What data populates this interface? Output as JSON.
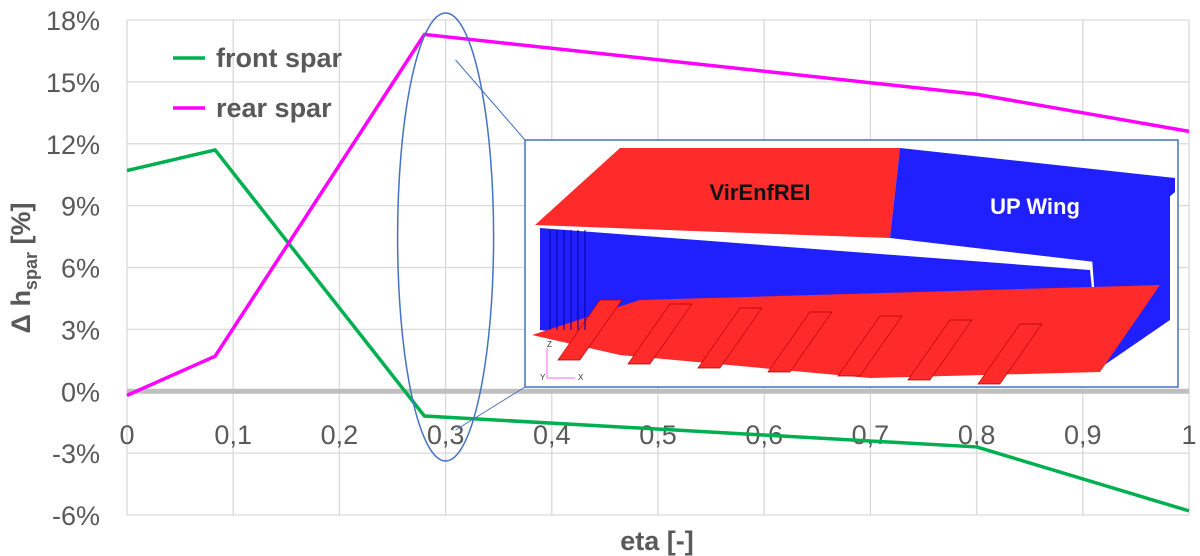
{
  "chart_data": {
    "type": "line",
    "title": "",
    "xlabel": "eta [-]",
    "ylabel_main": "Δ h",
    "ylabel_sub": "spar",
    "ylabel_unit": " [%]",
    "xlim": [
      0,
      1
    ],
    "ylim": [
      -6,
      18
    ],
    "xticks": [
      0,
      0.1,
      0.2,
      0.3,
      0.4,
      0.5,
      0.6,
      0.7,
      0.8,
      0.9,
      1
    ],
    "xtick_labels": [
      "0",
      "0,1",
      "0,2",
      "0,3",
      "0,4",
      "0,5",
      "0,6",
      "0,7",
      "0,8",
      "0,9",
      "1"
    ],
    "yticks": [
      -6,
      -3,
      0,
      3,
      6,
      9,
      12,
      15,
      18
    ],
    "ytick_labels": [
      "-6%",
      "-3%",
      "0%",
      "3%",
      "6%",
      "9%",
      "12%",
      "15%",
      "18%"
    ],
    "grid": true,
    "legend_placement": "top-left",
    "series": [
      {
        "name": "front spar",
        "color": "#00b050",
        "x": [
          0,
          0.083,
          0.28,
          0.8,
          1
        ],
        "y": [
          10.7,
          11.7,
          -1.2,
          -2.7,
          -5.8
        ]
      },
      {
        "name": "rear spar",
        "color": "#ff00ff",
        "x": [
          0,
          0.083,
          0.28,
          0.8,
          1
        ],
        "y": [
          -0.2,
          1.7,
          17.3,
          14.4,
          12.6
        ]
      }
    ],
    "annotation": {
      "highlight_eta": 0.3,
      "inset_labels": [
        "VirEnfREI",
        "UP Wing"
      ],
      "axis_triad": [
        "Z",
        "Y",
        "X"
      ],
      "colors": {
        "ellipse": "#4472c4",
        "wing_red": "#ff2a2a",
        "wing_blue": "#2020ff"
      }
    }
  }
}
